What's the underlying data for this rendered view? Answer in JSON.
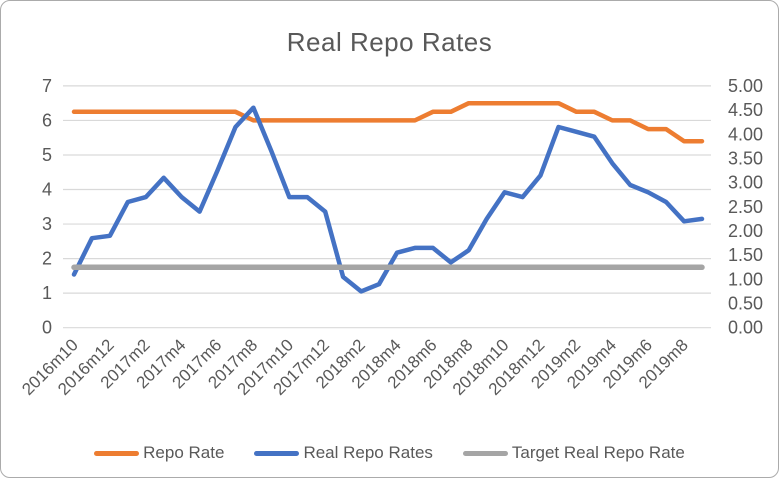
{
  "chart_data": {
    "type": "line",
    "title": "Real Repo Rates",
    "categories": [
      "2016m10",
      "2016m11",
      "2016m12",
      "2017m1",
      "2017m2",
      "2017m3",
      "2017m4",
      "2017m5",
      "2017m6",
      "2017m7",
      "2017m8",
      "2017m9",
      "2017m10",
      "2017m11",
      "2017m12",
      "2018m1",
      "2018m2",
      "2018m3",
      "2018m4",
      "2018m5",
      "2018m6",
      "2018m7",
      "2018m8",
      "2018m9",
      "2018m10",
      "2018m11",
      "2018m12",
      "2019m1",
      "2019m2",
      "2019m3",
      "2019m4",
      "2019m5",
      "2019m6",
      "2019m7",
      "2019m8",
      "2019m9"
    ],
    "visible_x_tick_labels": [
      "2016m10",
      "2016m12",
      "2017m2",
      "2017m4",
      "2017m6",
      "2017m8",
      "2017m10",
      "2017m12",
      "2018m2",
      "2018m4",
      "2018m6",
      "2018m8",
      "2018m10",
      "2018m12",
      "2019m2",
      "2019m4",
      "2019m6",
      "2019m8"
    ],
    "left_axis": {
      "min": 0,
      "max": 7,
      "step": 1,
      "tick_labels": [
        "0",
        "1",
        "2",
        "3",
        "4",
        "5",
        "6",
        "7"
      ]
    },
    "right_axis": {
      "min": 0,
      "max": 5,
      "step": 0.5,
      "tick_labels": [
        "0.00",
        "0.50",
        "1.00",
        "1.50",
        "2.00",
        "2.50",
        "3.00",
        "3.50",
        "4.00",
        "4.50",
        "5.00"
      ]
    },
    "grid": true,
    "legend_position": "bottom",
    "series": [
      {
        "name": "Repo Rate",
        "color": "#ED7D31",
        "axis": "left",
        "line_width": 4.5,
        "values": [
          6.25,
          6.25,
          6.25,
          6.25,
          6.25,
          6.25,
          6.25,
          6.25,
          6.25,
          6.25,
          6.0,
          6.0,
          6.0,
          6.0,
          6.0,
          6.0,
          6.0,
          6.0,
          6.0,
          6.0,
          6.25,
          6.25,
          6.5,
          6.5,
          6.5,
          6.5,
          6.5,
          6.5,
          6.25,
          6.25,
          6.0,
          6.0,
          5.75,
          5.75,
          5.4,
          5.4
        ]
      },
      {
        "name": "Real Repo Rates",
        "color": "#4472C4",
        "axis": "right",
        "line_width": 4.5,
        "values": [
          1.1,
          1.85,
          1.9,
          2.6,
          2.7,
          3.1,
          2.7,
          2.4,
          3.25,
          4.15,
          4.55,
          3.65,
          2.7,
          2.7,
          2.4,
          1.05,
          0.75,
          0.9,
          1.55,
          1.65,
          1.65,
          1.35,
          1.6,
          2.25,
          2.8,
          2.7,
          3.15,
          4.15,
          4.05,
          3.95,
          3.4,
          2.95,
          2.8,
          2.6,
          2.2,
          2.25
        ]
      },
      {
        "name": "Target Real Repo Rate",
        "color": "#A5A5A5",
        "axis": "right",
        "line_width": 5.5,
        "constant": 1.25
      }
    ],
    "colors": {
      "gridline": "#D9D9D9",
      "axis_text": "#595959",
      "title_text": "#595959"
    }
  }
}
